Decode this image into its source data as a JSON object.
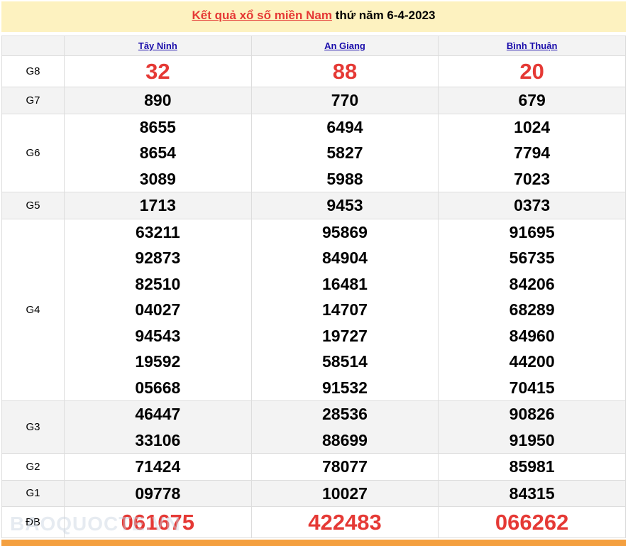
{
  "title": {
    "link": "Kết quả xổ số miền Nam",
    "rest": " thứ năm 6-4-2023"
  },
  "provinces": [
    "Tây Ninh",
    "An Giang",
    "Bình Thuận"
  ],
  "prizes": [
    {
      "label": "G8",
      "big": true,
      "values": [
        [
          "32"
        ],
        [
          "88"
        ],
        [
          "20"
        ]
      ]
    },
    {
      "label": "G7",
      "values": [
        [
          "890"
        ],
        [
          "770"
        ],
        [
          "679"
        ]
      ]
    },
    {
      "label": "G6",
      "values": [
        [
          "8655",
          "8654",
          "3089"
        ],
        [
          "6494",
          "5827",
          "5988"
        ],
        [
          "1024",
          "7794",
          "7023"
        ]
      ]
    },
    {
      "label": "G5",
      "values": [
        [
          "1713"
        ],
        [
          "9453"
        ],
        [
          "0373"
        ]
      ]
    },
    {
      "label": "G4",
      "values": [
        [
          "63211",
          "92873",
          "82510",
          "04027",
          "94543",
          "19592",
          "05668"
        ],
        [
          "95869",
          "84904",
          "16481",
          "14707",
          "19727",
          "58514",
          "91532"
        ],
        [
          "91695",
          "56735",
          "84206",
          "68289",
          "84960",
          "44200",
          "70415"
        ]
      ]
    },
    {
      "label": "G3",
      "values": [
        [
          "46447",
          "33106"
        ],
        [
          "28536",
          "88699"
        ],
        [
          "90826",
          "91950"
        ]
      ]
    },
    {
      "label": "G2",
      "values": [
        [
          "71424"
        ],
        [
          "78077"
        ],
        [
          "85981"
        ]
      ]
    },
    {
      "label": "G1",
      "values": [
        [
          "09778"
        ],
        [
          "10027"
        ],
        [
          "84315"
        ]
      ]
    },
    {
      "label": "ĐB",
      "big": true,
      "values": [
        [
          "061675"
        ],
        [
          "422483"
        ],
        [
          "066262"
        ]
      ]
    }
  ],
  "watermark": "BAOQUOCTE.VN",
  "colors": {
    "accent": "#e53935",
    "header_bg": "#fdf2c0",
    "link": "#1a0dab",
    "footer_bar": "#f4a040"
  }
}
